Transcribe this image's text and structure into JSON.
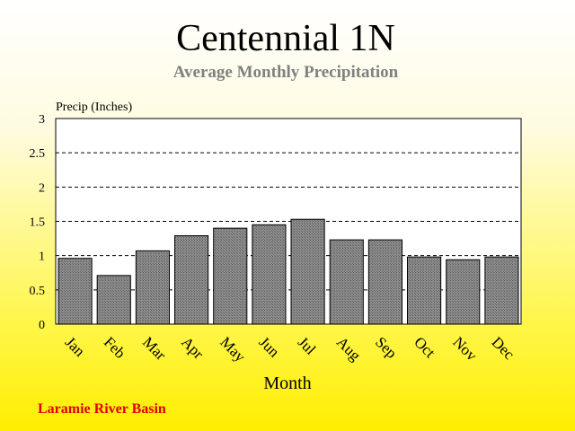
{
  "chart_data": {
    "type": "bar",
    "title": "Centennial 1N",
    "subtitle": "Average Monthly Precipitation",
    "ylabel": "Precip (Inches)",
    "xlabel": "Month",
    "categories": [
      "Jan",
      "Feb",
      "Mar",
      "Apr",
      "May",
      "Jun",
      "Jul",
      "Aug",
      "Sep",
      "Oct",
      "Nov",
      "Dec"
    ],
    "values": [
      0.96,
      0.71,
      1.07,
      1.29,
      1.4,
      1.45,
      1.53,
      1.23,
      1.23,
      0.98,
      0.94,
      0.98
    ],
    "ylim": [
      0,
      3
    ],
    "yticks": [
      "0",
      "0.5",
      "1",
      "1.5",
      "2",
      "2.5",
      "3"
    ],
    "grid": "horizontal dashed",
    "bar_color": "#808080"
  },
  "footer": "Laramie River Basin"
}
